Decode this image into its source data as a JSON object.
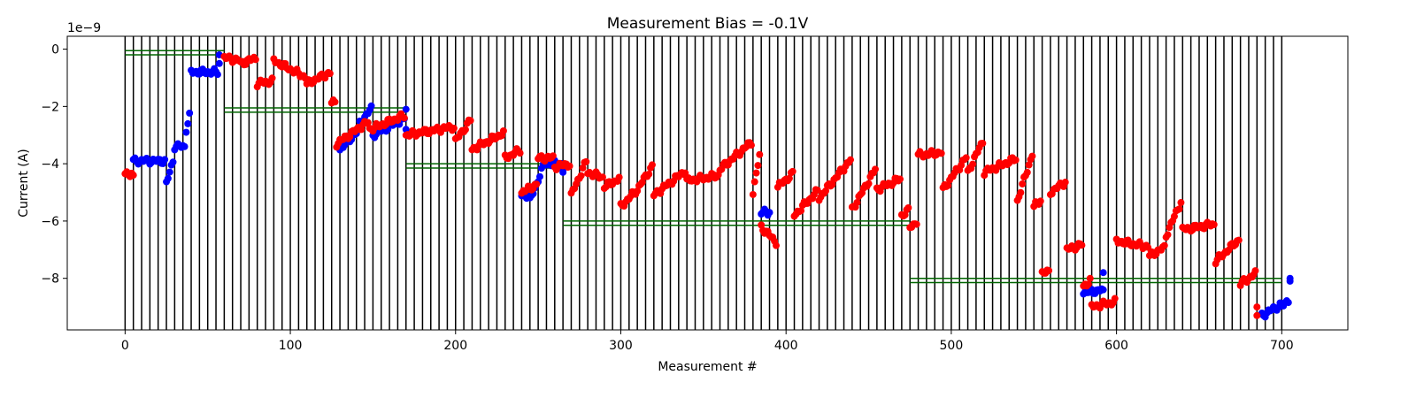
{
  "chart_data": {
    "type": "scatter",
    "title": "Measurement Bias = -0.1V",
    "xlabel": "Measurement #",
    "ylabel": "Current (A)",
    "y_exponent_label": "1e−9",
    "xlim": [
      -35,
      740
    ],
    "ylim": [
      -9.8,
      0.45
    ],
    "x_ticks": [
      0,
      100,
      200,
      300,
      400,
      500,
      600,
      700
    ],
    "y_ticks": [
      0,
      -2,
      -4,
      -6,
      -8
    ],
    "x_tick_labels": [
      "0",
      "100",
      "200",
      "300",
      "400",
      "500",
      "600",
      "700"
    ],
    "y_tick_labels": [
      "0",
      "−2",
      "−4",
      "−6",
      "−8"
    ],
    "grid": false,
    "colors": {
      "red": "#ff0000",
      "blue": "#0000ff",
      "lines": "#000000",
      "levels": "#006400"
    },
    "vlines": {
      "start": 0,
      "end": 700,
      "step": 5
    },
    "level_lines": [
      {
        "x_start": 0,
        "x_end": 60,
        "y": [
          -0.05,
          -0.2
        ]
      },
      {
        "x_start": 60,
        "x_end": 170,
        "y": [
          -2.05,
          -2.2
        ]
      },
      {
        "x_start": 170,
        "x_end": 265,
        "y": [
          -4.0,
          -4.15
        ]
      },
      {
        "x_start": 265,
        "x_end": 475,
        "y": [
          -6.0,
          -6.15
        ]
      },
      {
        "x_start": 475,
        "x_end": 700,
        "y": [
          -8.0,
          -8.15
        ]
      }
    ],
    "series": [
      {
        "color": "blue",
        "segments": [
          [
            5,
            -3.9,
            -3.9
          ],
          [
            25,
            -4.7,
            -3.7
          ],
          [
            30,
            -3.4,
            -3.4
          ],
          [
            37,
            -2.8,
            -2.1
          ],
          [
            40,
            -0.8,
            -0.8
          ],
          [
            57,
            -0.5,
            -0.2
          ],
          [
            130,
            -3.5,
            -2.8
          ],
          [
            142,
            -2.6,
            -2.0
          ],
          [
            150,
            -3.0,
            -2.4
          ],
          [
            170,
            -2.8,
            -2.1
          ],
          [
            240,
            -5.1,
            -5.1
          ],
          [
            245,
            -5.3,
            -3.8
          ],
          [
            255,
            -4.0,
            -4.0
          ],
          [
            265,
            -4.3,
            -4.2
          ],
          [
            385,
            -5.7,
            -5.7
          ],
          [
            390,
            -5.7,
            -5.7
          ],
          [
            580,
            -8.5,
            -8.4
          ],
          [
            592,
            -8.4,
            -7.8
          ],
          [
            688,
            -9.3,
            -8.9
          ],
          [
            700,
            -9.0,
            -8.7
          ],
          [
            705,
            -8.1,
            -8.0
          ]
        ]
      },
      {
        "color": "red",
        "segments": [
          [
            0,
            -4.4,
            -4.3
          ],
          [
            5,
            -4.4,
            -4.4
          ],
          [
            60,
            -0.3,
            -0.4
          ],
          [
            70,
            -0.5,
            -0.3
          ],
          [
            80,
            -1.2,
            -1.1
          ],
          [
            90,
            -0.4,
            -1.0
          ],
          [
            110,
            -1.2,
            -0.8
          ],
          [
            125,
            -1.9,
            -1.8
          ],
          [
            128,
            -3.3,
            -2.5
          ],
          [
            148,
            -2.8,
            -2.3
          ],
          [
            170,
            -3.0,
            -2.7
          ],
          [
            200,
            -3.2,
            -2.4
          ],
          [
            210,
            -3.5,
            -2.9
          ],
          [
            230,
            -3.8,
            -3.5
          ],
          [
            240,
            -5.0,
            -4.7
          ],
          [
            250,
            -3.8,
            -3.8
          ],
          [
            260,
            -4.1,
            -4.0
          ],
          [
            270,
            -5.1,
            -3.8
          ],
          [
            280,
            -4.3,
            -4.5
          ],
          [
            290,
            -4.8,
            -4.5
          ],
          [
            300,
            -5.5,
            -4.9
          ],
          [
            310,
            -4.9,
            -4.0
          ],
          [
            320,
            -5.1,
            -4.2
          ],
          [
            340,
            -4.6,
            -4.4
          ],
          [
            360,
            -4.2,
            -3.2
          ],
          [
            380,
            -5.0,
            -3.4
          ],
          [
            385,
            -6.2,
            -6.8
          ],
          [
            395,
            -4.8,
            -4.3
          ],
          [
            405,
            -5.8,
            -4.9
          ],
          [
            420,
            -5.2,
            -3.8
          ],
          [
            440,
            -5.6,
            -4.1
          ],
          [
            455,
            -4.9,
            -4.5
          ],
          [
            470,
            -5.8,
            -5.6
          ],
          [
            475,
            -6.2,
            -6.0
          ],
          [
            480,
            -3.7,
            -3.6
          ],
          [
            495,
            -4.9,
            -3.7
          ],
          [
            510,
            -4.3,
            -3.1
          ],
          [
            520,
            -4.3,
            -3.8
          ],
          [
            540,
            -5.3,
            -3.5
          ],
          [
            550,
            -5.5,
            -5.2
          ],
          [
            555,
            -7.8,
            -7.8
          ],
          [
            560,
            -5.0,
            -4.6
          ],
          [
            570,
            -7.0,
            -6.8
          ],
          [
            580,
            -8.3,
            -8.0
          ],
          [
            585,
            -9.0,
            -8.8
          ],
          [
            600,
            -6.7,
            -6.9
          ],
          [
            620,
            -7.2,
            -6.9
          ],
          [
            630,
            -6.5,
            -5.2
          ],
          [
            640,
            -6.3,
            -6.1
          ],
          [
            660,
            -7.4,
            -6.6
          ],
          [
            675,
            -8.2,
            -7.8
          ],
          [
            685,
            -9.0,
            -9.3
          ]
        ]
      }
    ]
  }
}
